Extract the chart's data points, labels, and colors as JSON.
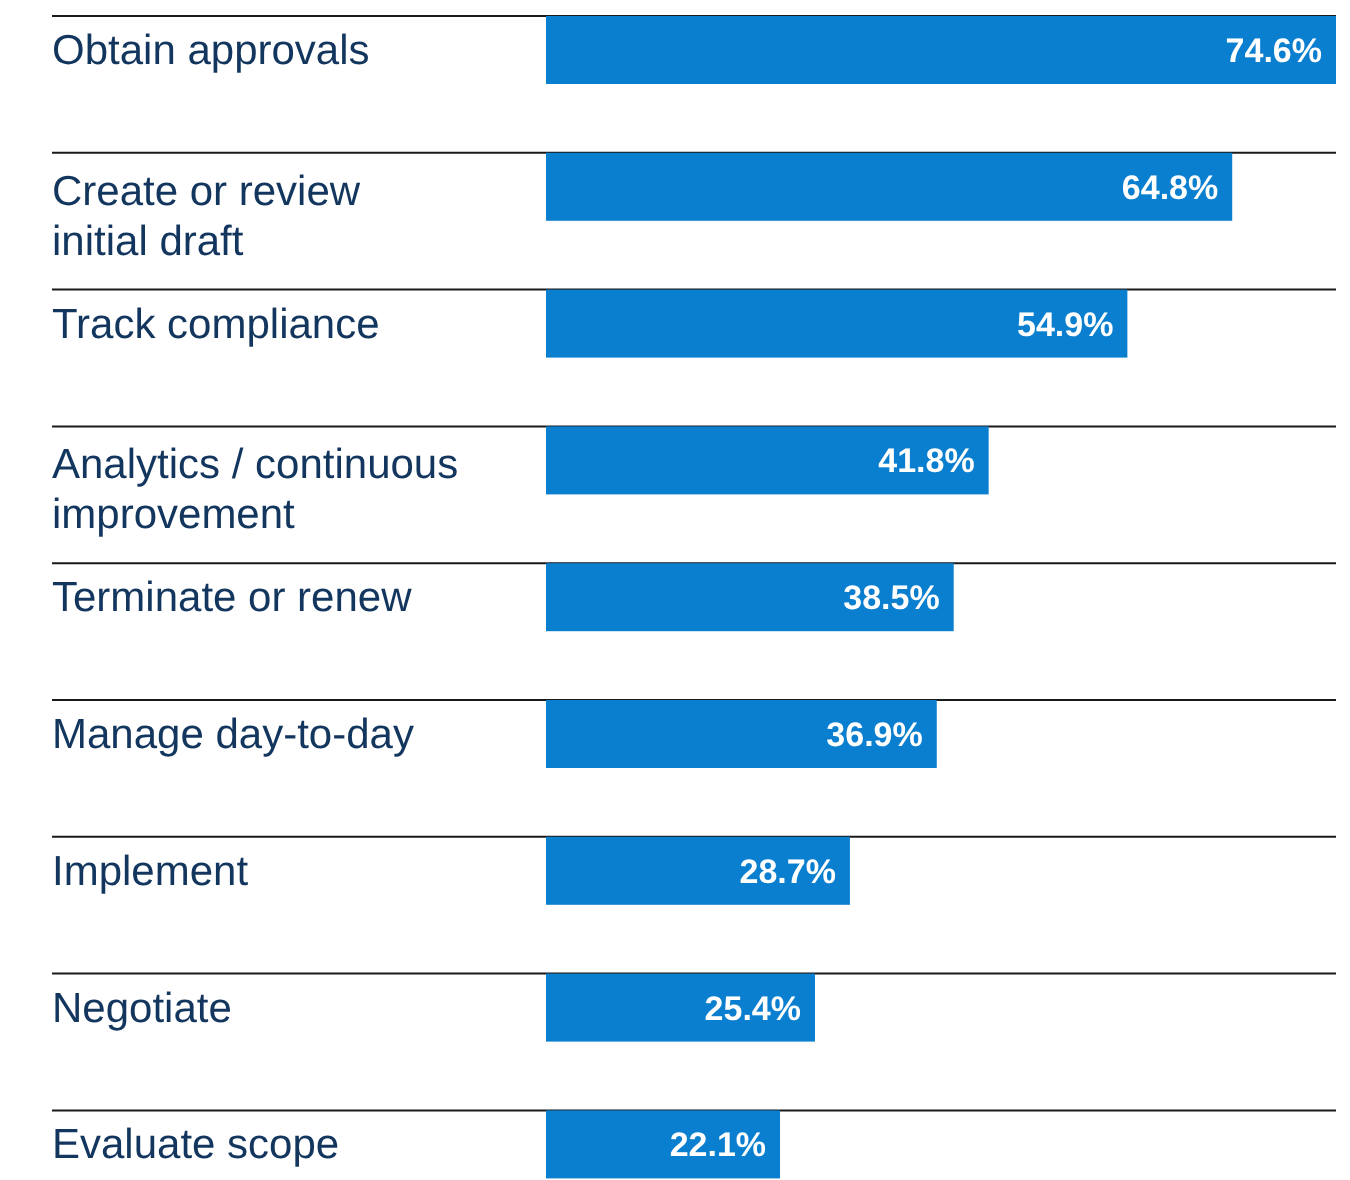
{
  "chart_data": {
    "type": "bar",
    "orientation": "horizontal",
    "categories": [
      "Obtain approvals",
      "Create or review initial draft",
      "Track compliance",
      "Analytics / continuous improvement",
      "Terminate or renew",
      "Manage day-to-day",
      "Implement",
      "Negotiate",
      "Evaluate scope"
    ],
    "values": [
      74.6,
      64.8,
      54.9,
      41.8,
      38.5,
      36.9,
      28.7,
      25.4,
      22.1
    ],
    "color": "#0a7fcf",
    "data_labels": true,
    "grid": true,
    "value_labels": [
      "74.6%",
      "64.8%",
      "54.9%",
      "41.8%",
      "38.5%",
      "36.9%",
      "28.7%",
      "25.4%",
      "22.1%"
    ]
  }
}
